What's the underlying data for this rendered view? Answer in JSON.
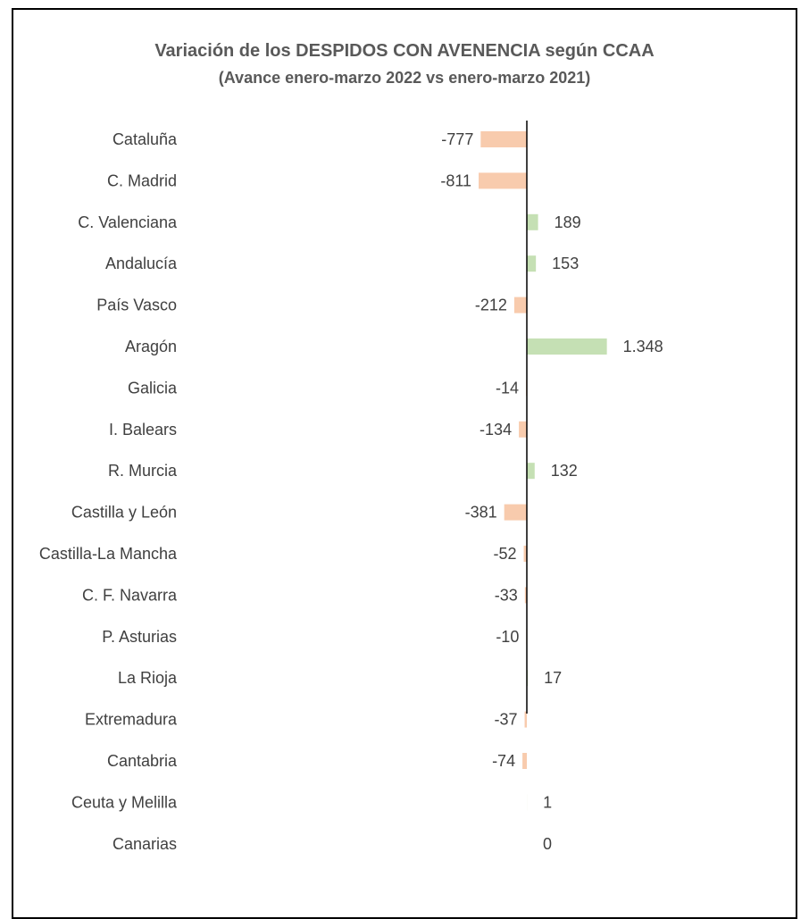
{
  "chart_data": {
    "type": "bar",
    "orientation": "horizontal",
    "title": "Variación de los DESPIDOS CON AVENENCIA según CCAA",
    "subtitle": "(Avance enero-marzo 2022 vs enero-marzo 2021)",
    "categories": [
      "Cataluña",
      "C. Madrid",
      "C. Valenciana",
      "Andalucía",
      "País Vasco",
      "Aragón",
      "Galicia",
      "I. Balears",
      "R. Murcia",
      "Castilla y León",
      "Castilla-La Mancha",
      "C. F. Navarra",
      "P. Asturias",
      "La Rioja",
      "Extremadura",
      "Cantabria",
      "Ceuta y Melilla",
      "Canarias"
    ],
    "values": [
      -777,
      -811,
      189,
      153,
      -212,
      1348,
      -14,
      -134,
      132,
      -381,
      -52,
      -33,
      -10,
      17,
      -37,
      -74,
      1,
      0
    ],
    "value_labels": [
      "-777",
      "-811",
      "189",
      "153",
      "-212",
      "1.348",
      "-14",
      "-134",
      "132",
      "-381",
      "-52",
      "-33",
      "-10",
      "17",
      "-37",
      "-74",
      "1",
      "0"
    ],
    "colors": {
      "positive": "#c5e0b4",
      "negative": "#f8cbad",
      "axis": "#000000",
      "text": "#404040"
    },
    "grid": false,
    "legend": "none"
  }
}
